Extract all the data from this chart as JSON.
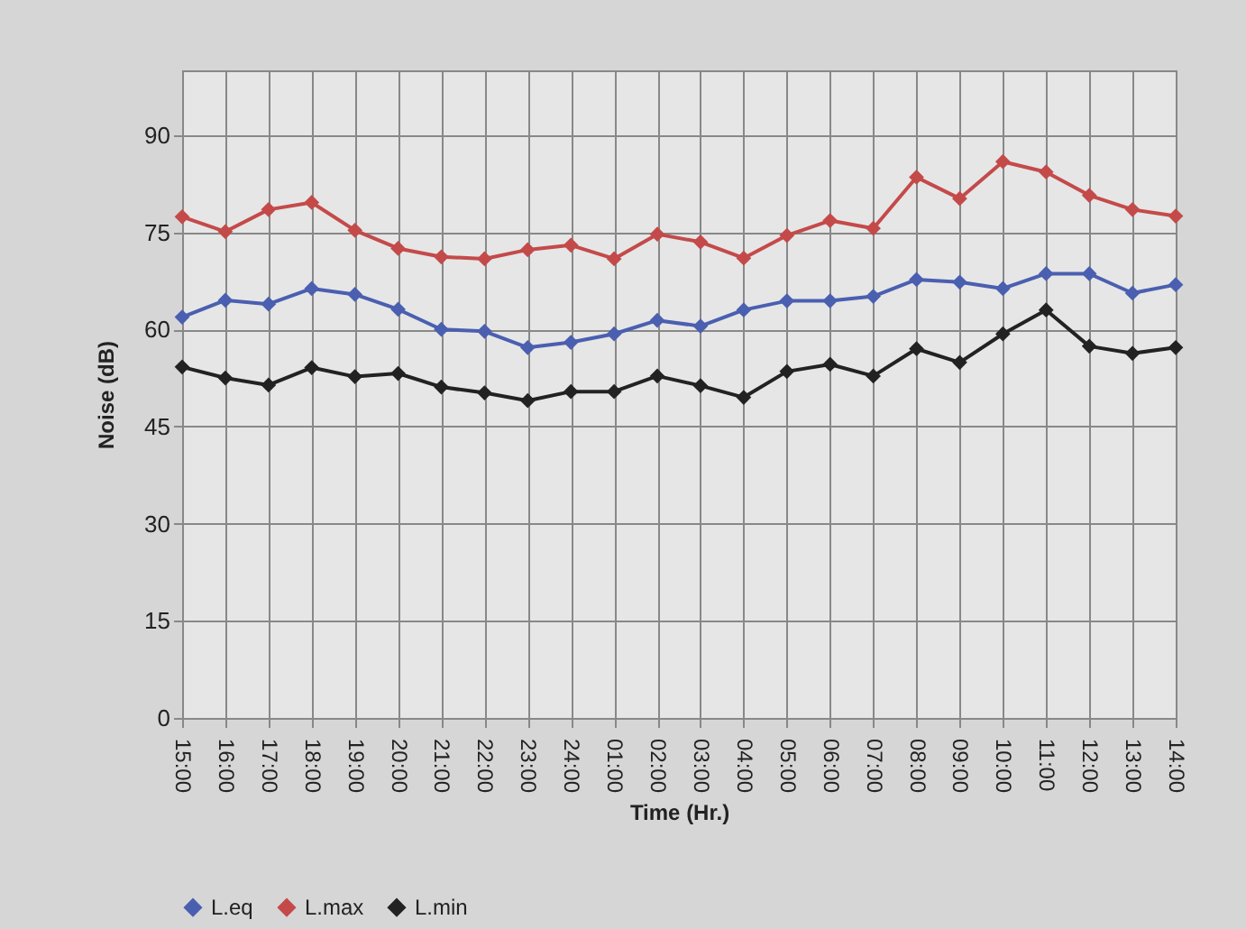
{
  "chart_data": {
    "type": "line",
    "xlabel": "Time (Hr.)",
    "ylabel": "Noise (dB)",
    "categories": [
      "15:00",
      "16:00",
      "17:00",
      "18:00",
      "19:00",
      "20:00",
      "21:00",
      "22:00",
      "23:00",
      "24:00",
      "01:00",
      "02:00",
      "03:00",
      "04:00",
      "05:00",
      "06:00",
      "07:00",
      "08:00",
      "09:00",
      "10:00",
      "11:00",
      "12:00",
      "13:00",
      "14:00"
    ],
    "series": [
      {
        "name": "L.eq",
        "color": "#4a5fb0",
        "values": [
          61.9,
          64.5,
          63.9,
          66.3,
          65.4,
          63.1,
          60.0,
          59.7,
          57.2,
          58.0,
          59.3,
          61.4,
          60.5,
          63.0,
          64.4,
          64.4,
          65.1,
          67.7,
          67.3,
          66.3,
          68.6,
          68.6,
          65.6,
          66.9
        ]
      },
      {
        "name": "L.max",
        "color": "#c44a4a",
        "values": [
          77.4,
          75.1,
          78.5,
          79.6,
          75.3,
          72.5,
          71.2,
          70.9,
          72.3,
          73.0,
          70.9,
          74.7,
          73.5,
          71.0,
          74.5,
          76.8,
          75.6,
          83.5,
          80.2,
          85.9,
          84.3,
          80.7,
          78.5,
          77.5
        ]
      },
      {
        "name": "L.min",
        "color": "#222222",
        "values": [
          54.2,
          52.5,
          51.4,
          54.1,
          52.7,
          53.2,
          51.1,
          50.2,
          49.0,
          50.4,
          50.4,
          52.8,
          51.3,
          49.5,
          53.5,
          54.6,
          52.8,
          57.0,
          54.9,
          59.3,
          63.0,
          57.4,
          56.3,
          57.2
        ]
      }
    ],
    "ylim": [
      0,
      100
    ],
    "yticks": [
      0,
      15,
      30,
      45,
      60,
      75,
      90
    ],
    "grid": true,
    "legend": "bottom",
    "marker": "diamond",
    "line_style": "solid"
  }
}
